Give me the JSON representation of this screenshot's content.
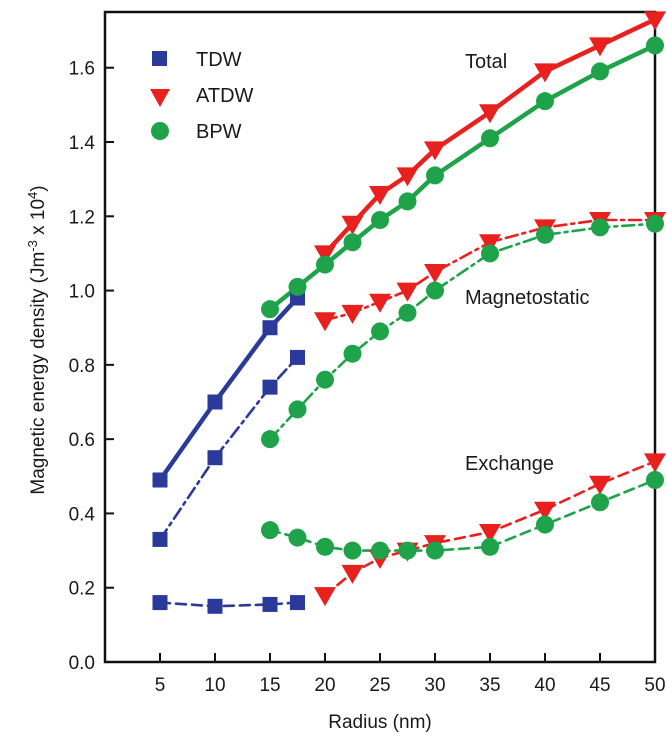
{
  "chart_data": {
    "type": "line",
    "xlabel": "Radius (nm)",
    "ylabel_main": "Magnetic energy density (Jm",
    "ylabel_sup1": "-3",
    "ylabel_mid": " x 10",
    "ylabel_sup2": "4",
    "ylabel_end": ")",
    "xlim": [
      0,
      50
    ],
    "ylim": [
      0,
      1.75
    ],
    "x_ticks": [
      5,
      10,
      15,
      20,
      25,
      30,
      35,
      40,
      45,
      50
    ],
    "y_ticks": [
      0.0,
      0.2,
      0.4,
      0.6,
      0.8,
      1.0,
      1.2,
      1.4,
      1.6
    ],
    "y_tick_labels": [
      "0.0",
      "0.2",
      "0.4",
      "0.6",
      "0.8",
      "1.0",
      "1.2",
      "1.4",
      "1.6"
    ],
    "x_tick_labels": [
      "5",
      "10",
      "15",
      "20",
      "25",
      "30",
      "35",
      "40",
      "45",
      "50"
    ],
    "grid": false,
    "legend": [
      {
        "name": "TDW",
        "marker": "square",
        "color": "#2b3a9a"
      },
      {
        "name": "ATDW",
        "marker": "triangle-down",
        "color": "#e8201e"
      },
      {
        "name": "BPW",
        "marker": "circle",
        "color": "#1fa34a"
      }
    ],
    "annotations": [
      "Total",
      "Magnetostatic",
      "Exchange"
    ],
    "series": [
      {
        "wall": "TDW",
        "component": "Total",
        "style": "solid",
        "color": "#2b3a9a",
        "marker": "square",
        "x": [
          5,
          10,
          15,
          17.5
        ],
        "y": [
          0.49,
          0.7,
          0.9,
          0.98
        ]
      },
      {
        "wall": "TDW",
        "component": "Magnetostatic",
        "style": "dashdot",
        "color": "#2b3a9a",
        "marker": "square",
        "x": [
          5,
          10,
          15,
          17.5
        ],
        "y": [
          0.33,
          0.55,
          0.74,
          0.82
        ]
      },
      {
        "wall": "TDW",
        "component": "Exchange",
        "style": "dashed",
        "color": "#2b3a9a",
        "marker": "square",
        "x": [
          5,
          10,
          15,
          17.5
        ],
        "y": [
          0.16,
          0.15,
          0.155,
          0.16
        ]
      },
      {
        "wall": "ATDW",
        "component": "Total",
        "style": "solid",
        "color": "#e8201e",
        "marker": "triangle-down",
        "x": [
          20,
          22.5,
          25,
          27.5,
          30,
          35,
          40,
          45,
          50
        ],
        "y": [
          1.1,
          1.18,
          1.26,
          1.31,
          1.38,
          1.48,
          1.59,
          1.66,
          1.73
        ]
      },
      {
        "wall": "ATDW",
        "component": "Magnetostatic",
        "style": "dashdot",
        "color": "#e8201e",
        "marker": "triangle-down",
        "x": [
          20,
          22.5,
          25,
          27.5,
          30,
          35,
          40,
          45,
          50
        ],
        "y": [
          0.92,
          0.94,
          0.97,
          1.0,
          1.05,
          1.13,
          1.17,
          1.19,
          1.19
        ]
      },
      {
        "wall": "ATDW",
        "component": "Exchange",
        "style": "dashed",
        "color": "#e8201e",
        "marker": "triangle-down",
        "x": [
          20,
          22.5,
          25,
          27.5,
          30,
          35,
          40,
          45,
          50
        ],
        "y": [
          0.18,
          0.24,
          0.28,
          0.3,
          0.32,
          0.35,
          0.41,
          0.48,
          0.54
        ]
      },
      {
        "wall": "BPW",
        "component": "Total",
        "style": "solid",
        "color": "#1fa34a",
        "marker": "circle",
        "x": [
          15,
          17.5,
          20,
          22.5,
          25,
          27.5,
          30,
          35,
          40,
          45,
          50
        ],
        "y": [
          0.95,
          1.01,
          1.07,
          1.13,
          1.19,
          1.24,
          1.31,
          1.41,
          1.51,
          1.59,
          1.66
        ]
      },
      {
        "wall": "BPW",
        "component": "Magnetostatic",
        "style": "dashdot",
        "color": "#1fa34a",
        "marker": "circle",
        "x": [
          15,
          17.5,
          20,
          22.5,
          25,
          27.5,
          30,
          35,
          40,
          45,
          50
        ],
        "y": [
          0.6,
          0.68,
          0.76,
          0.83,
          0.89,
          0.94,
          1.0,
          1.1,
          1.15,
          1.17,
          1.18
        ]
      },
      {
        "wall": "BPW",
        "component": "Exchange",
        "style": "dashed",
        "color": "#1fa34a",
        "marker": "circle",
        "x": [
          15,
          17.5,
          20,
          22.5,
          25,
          27.5,
          30,
          35,
          40,
          45,
          50
        ],
        "y": [
          0.355,
          0.335,
          0.31,
          0.3,
          0.3,
          0.3,
          0.3,
          0.31,
          0.37,
          0.43,
          0.49
        ]
      }
    ]
  }
}
